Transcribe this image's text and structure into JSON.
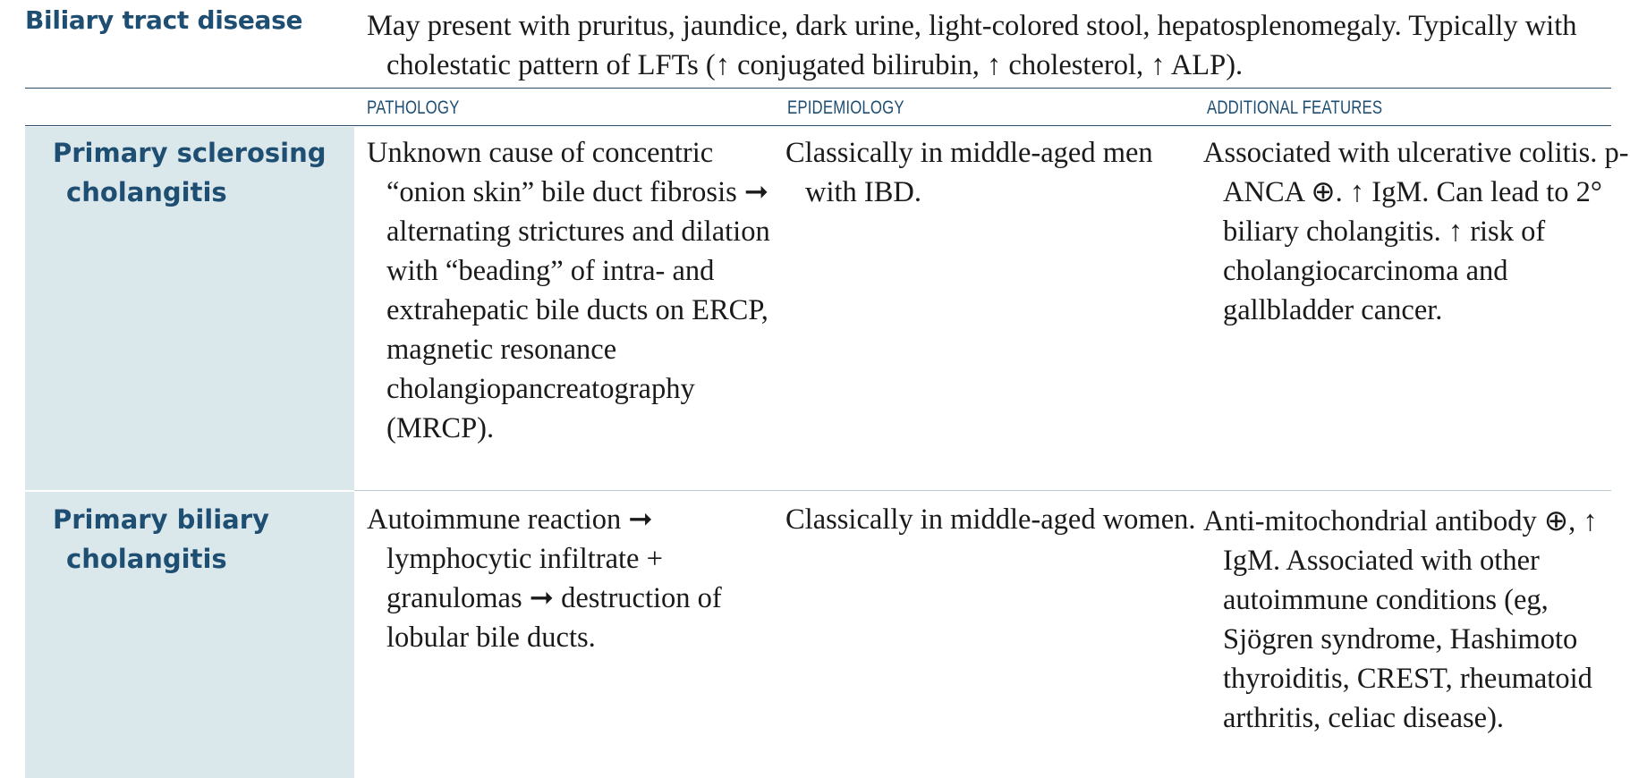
{
  "section": {
    "title": "Biliary tract disease",
    "intro": "May present with pruritus, jaundice, dark urine, light-colored stool, hepatosplenomegaly. Typically with cholestatic pattern of LFTs (↑ conjugated bilirubin, ↑ cholesterol, ↑ ALP)."
  },
  "table": {
    "columns": [
      "PATHOLOGY",
      "EPIDEMIOLOGY",
      "ADDITIONAL FEATURES"
    ],
    "rows": [
      {
        "disease": "Primary sclerosing cholangitis",
        "pathology": "Unknown cause of concentric “onion skin” bile duct fibrosis ➞ alternating strictures and dilation with “beading” of intra- and extrahepatic bile ducts on ERCP, magnetic resonance cholangiopancreatography (MRCP).",
        "epidemiology": "Classically in middle-aged men with IBD.",
        "additional": "Associated with ulcerative colitis. p-ANCA ⊕. ↑ IgM. Can lead to 2° biliary cholangitis. ↑ risk of cholangiocarcinoma and gallbladder cancer."
      },
      {
        "disease": "Primary biliary cholangitis",
        "pathology": "Autoimmune reaction ➞ lymphocytic infiltrate + granulomas ➞ destruction of lobular bile ducts.",
        "epidemiology": "Classically in middle-aged women.",
        "additional": "Anti-mitochondrial antibody ⊕, ↑ IgM. Associated with other autoimmune conditions (eg, Sjögren syndrome, Hashimoto thyroiditis, CREST, rheumatoid arthritis, celiac disease)."
      }
    ]
  },
  "colors": {
    "heading": "#1f4e73",
    "rule": "#2a4d6a",
    "shade": "#dbe8eb",
    "text": "#1a1a1a"
  }
}
